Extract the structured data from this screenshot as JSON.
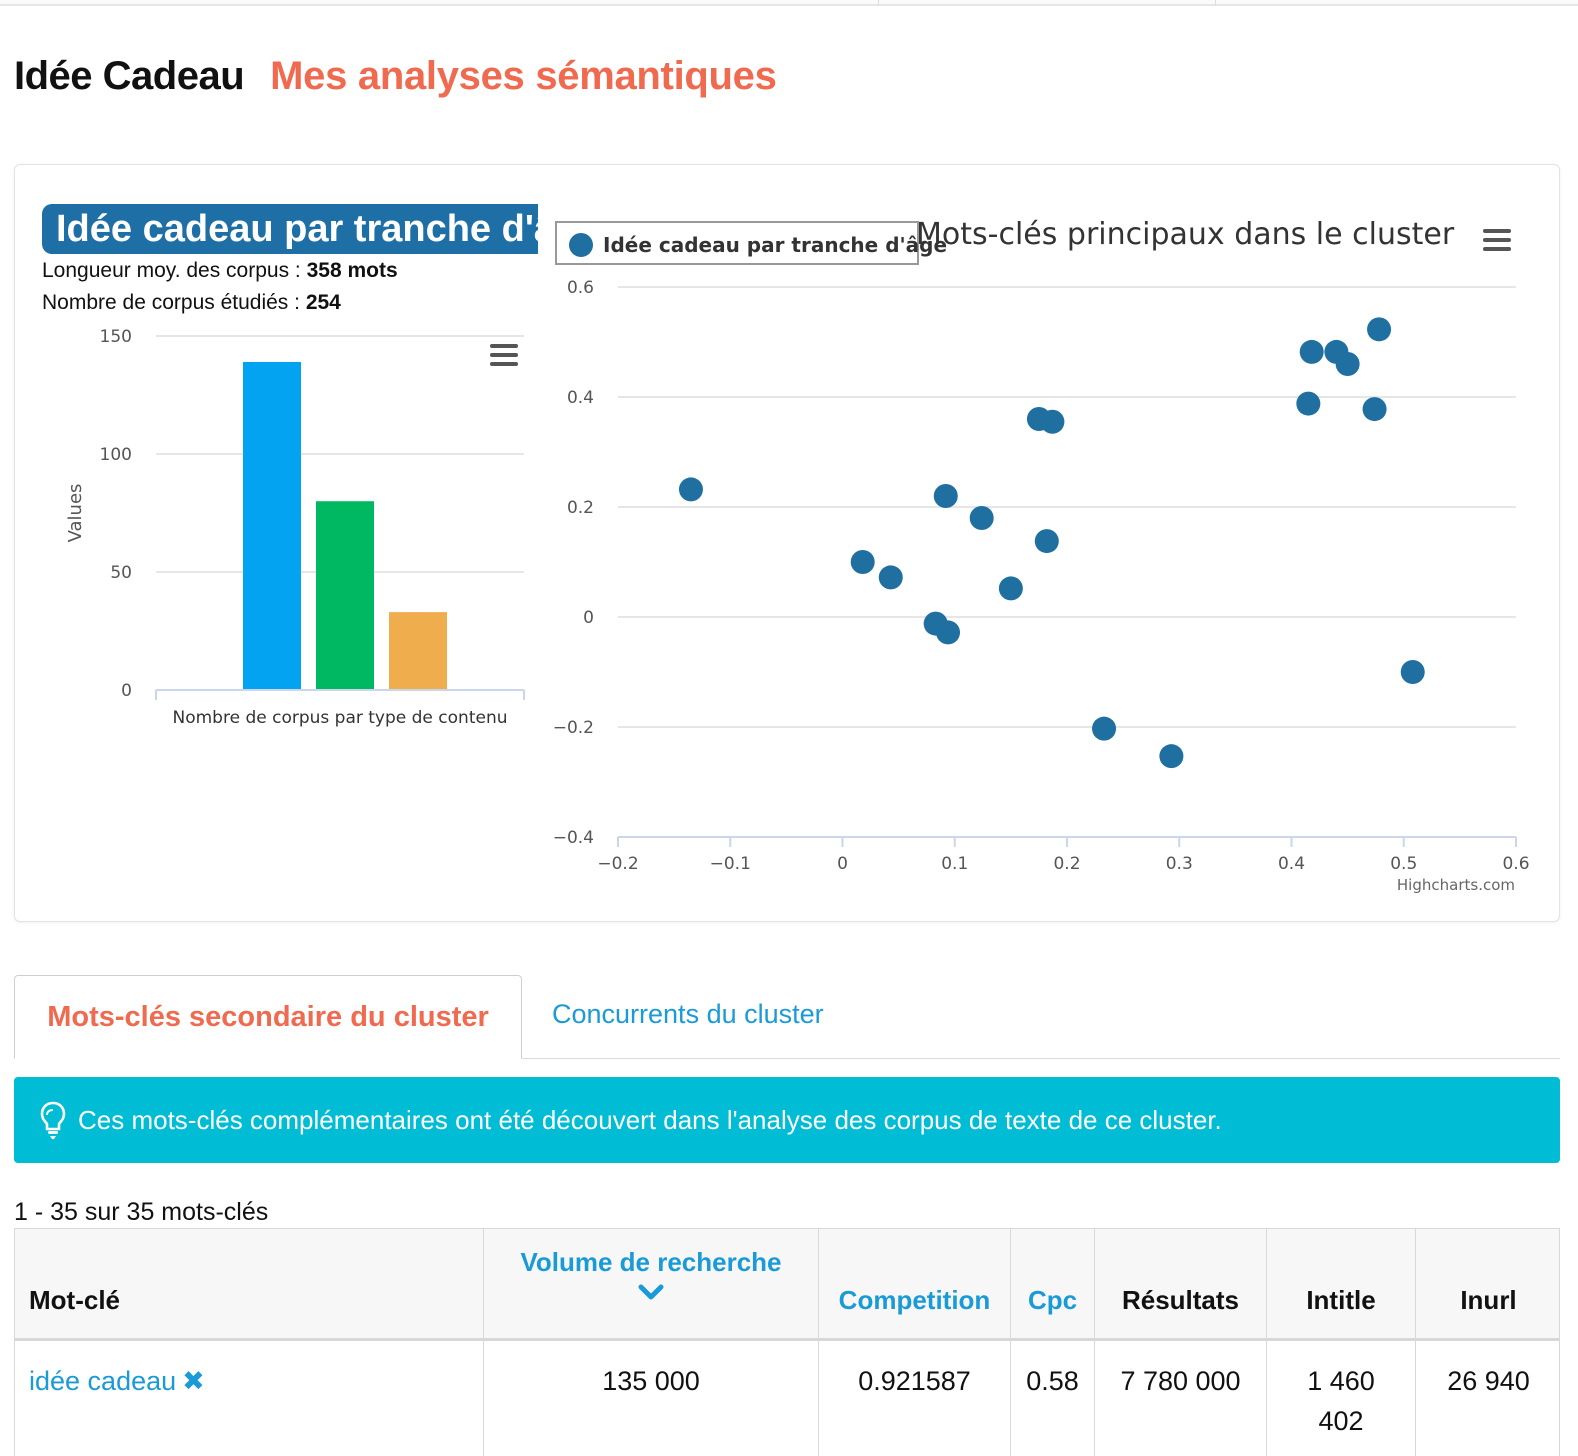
{
  "header": {
    "title": "Idée Cadeau",
    "subtitle": "Mes analyses sémantiques"
  },
  "summary": {
    "badge": "Idée cadeau par tranche d'âge",
    "avg_length_label": "Longueur moy. des corpus : ",
    "avg_length_value": "358 mots",
    "corpus_count_label": "Nombre de corpus étudiés : ",
    "corpus_count_value": "254"
  },
  "chart_data": [
    {
      "type": "bar",
      "categories": [
        "Nombre de corpus par type de contenu"
      ],
      "series": [
        {
          "values": [
            139
          ],
          "color": "#03a3f2"
        },
        {
          "values": [
            80
          ],
          "color": "#00b862"
        },
        {
          "values": [
            33
          ],
          "color": "#f0ad4e"
        }
      ],
      "ylabel": "Values",
      "ylim": [
        0,
        150
      ],
      "yticks": [
        0,
        50,
        100,
        150
      ],
      "grid": true,
      "menu_icon": "hamburger-menu-icon"
    },
    {
      "type": "scatter",
      "title": "Mots-clés principaux dans le cluster",
      "series": [
        {
          "name": "Idée cadeau par tranche d'âge",
          "color": "#1f6fa1",
          "points": [
            [
              -0.135,
              0.232
            ],
            [
              0.018,
              0.1
            ],
            [
              0.043,
              0.072
            ],
            [
              0.083,
              -0.012
            ],
            [
              0.094,
              -0.028
            ],
            [
              0.092,
              0.22
            ],
            [
              0.124,
              0.18
            ],
            [
              0.15,
              0.052
            ],
            [
              0.175,
              0.36
            ],
            [
              0.187,
              0.355
            ],
            [
              0.182,
              0.138
            ],
            [
              0.233,
              -0.203
            ],
            [
              0.293,
              -0.253
            ],
            [
              0.415,
              0.388
            ],
            [
              0.418,
              0.482
            ],
            [
              0.44,
              0.482
            ],
            [
              0.45,
              0.46
            ],
            [
              0.474,
              0.378
            ],
            [
              0.478,
              0.523
            ],
            [
              0.508,
              -0.1
            ]
          ]
        }
      ],
      "xlim": [
        -0.2,
        0.6
      ],
      "ylim": [
        -0.4,
        0.6
      ],
      "xticks": [
        "−0.2",
        "−0.1",
        "0",
        "0.1",
        "0.2",
        "0.3",
        "0.4",
        "0.5",
        "0.6"
      ],
      "yticks": [
        "0.6",
        "0.4",
        "0.2",
        "0",
        "−0.2",
        "−0.4"
      ],
      "legend": "top-left",
      "grid": true,
      "credits": "Highcharts.com",
      "menu_icon": "hamburger-menu-icon"
    }
  ],
  "tabs": {
    "active": "Mots-clés secondaire du cluster",
    "inactive": "Concurrents du cluster"
  },
  "alert": {
    "icon": "lightbulb-icon",
    "text": "Ces mots-clés complémentaires ont été découvert dans l'analyse des corpus de texte de ce cluster."
  },
  "results_count": "1 - 35 sur 35 mots-clés",
  "table": {
    "columns": [
      "Mot-clé",
      "Volume de recherche",
      "Competition",
      "Cpc",
      "Résultats",
      "Intitle",
      "Inurl"
    ],
    "sort_icon": "chevron-down-icon",
    "rows": [
      {
        "keyword": "idée cadeau",
        "remove_icon": "close-icon",
        "volume": "135 000",
        "competition": "0.921587",
        "cpc": "0.58",
        "results": "7 780 000",
        "intitle": "1 460 402",
        "inurl": "26 940"
      }
    ]
  }
}
